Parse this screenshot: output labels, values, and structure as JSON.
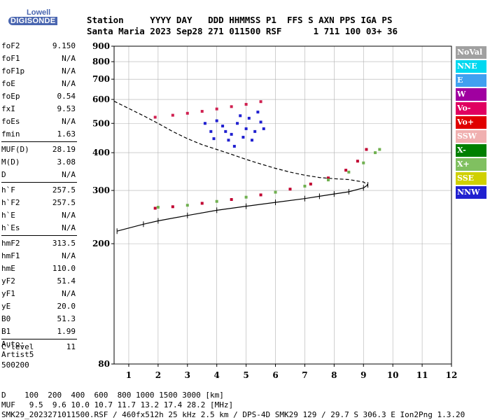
{
  "logo": {
    "line1": "Lowell",
    "line2": "DIGISONDE"
  },
  "header": {
    "line1": "Station     YYYY DAY   DDD HHMMSS P1  FFS S AXN PPS IGA PS",
    "line2": "Santa Maria 2023 Sep28 271 011500 RSF      1 711 100 03+ 36"
  },
  "params": {
    "group1": [
      {
        "name": "foF2",
        "value": "9.150"
      },
      {
        "name": "foF1",
        "value": "N/A"
      },
      {
        "name": "foF1p",
        "value": "N/A"
      },
      {
        "name": "foE",
        "value": "N/A"
      },
      {
        "name": "foEp",
        "value": "0.54"
      },
      {
        "name": "fxI",
        "value": "9.53"
      },
      {
        "name": "foEs",
        "value": "N/A"
      },
      {
        "name": "fmin",
        "value": "1.63"
      }
    ],
    "group2": [
      {
        "name": "MUF(D)",
        "value": "28.19"
      },
      {
        "name": "M(D)",
        "value": "3.08"
      },
      {
        "name": "D",
        "value": "N/A"
      }
    ],
    "group3": [
      {
        "name": "h`F",
        "value": "257.5"
      },
      {
        "name": "h`F2",
        "value": "257.5"
      },
      {
        "name": "h`E",
        "value": "N/A"
      },
      {
        "name": "h`Es",
        "value": "N/A"
      }
    ],
    "group4": [
      {
        "name": "hmF2",
        "value": "313.5"
      },
      {
        "name": "hmF1",
        "value": "N/A"
      },
      {
        "name": "hmE",
        "value": "110.0"
      },
      {
        "name": "yF2",
        "value": "51.4"
      },
      {
        "name": "yF1",
        "value": "N/A"
      },
      {
        "name": "yE",
        "value": "20.0"
      },
      {
        "name": "B0",
        "value": "51.3"
      },
      {
        "name": "B1",
        "value": "1.99"
      }
    ],
    "group5": [
      {
        "name": "C-level",
        "value": "11"
      }
    ]
  },
  "auto": {
    "line1": "Auto:",
    "line2": "Artist5",
    "line3": "500200"
  },
  "footer": {
    "line1": "D    100  200  400  600  800 1000 1500 3000 [km]",
    "line2": "MUF   9.5  9.6 10.0 10.7 11.7 13.2 17.4 28.2 [MHz]",
    "line3": "SMK29_2023271011500.RSF / 460fx512h 25 kHz 2.5 km / DPS-4D SMK29 129 / 29.7 S 306.3 E Ion2Png 1.3.20"
  },
  "legend": [
    {
      "label": "NoVal",
      "color": "#a0a0a0"
    },
    {
      "label": "NNE",
      "color": "#00d8f0"
    },
    {
      "label": "E",
      "color": "#40a0f0"
    },
    {
      "label": "W",
      "color": "#a000a0"
    },
    {
      "label": "Vo-",
      "color": "#e00060"
    },
    {
      "label": "Vo+",
      "color": "#e00000"
    },
    {
      "label": "SSW",
      "color": "#f0b0b0"
    },
    {
      "label": "X-",
      "color": "#008000"
    },
    {
      "label": "X+",
      "color": "#80c060"
    },
    {
      "label": "SSE",
      "color": "#d0d000"
    },
    {
      "label": "NNW",
      "color": "#2020d0"
    }
  ],
  "chart_data": {
    "type": "scatter",
    "xlim": [
      0.5,
      12
    ],
    "ylim": [
      80,
      900
    ],
    "y_scale": "log",
    "x_ticks": [
      1,
      2,
      3,
      4,
      5,
      6,
      7,
      8,
      9,
      10,
      11,
      12
    ],
    "y_ticks": [
      80,
      200,
      300,
      400,
      500,
      600,
      700,
      800,
      900
    ],
    "grid": true,
    "series": [
      {
        "name": "Vo+",
        "color": "#c00030",
        "points": [
          [
            1.9,
            262
          ],
          [
            2.5,
            265
          ],
          [
            3.5,
            272
          ],
          [
            4.5,
            280
          ],
          [
            5.5,
            290
          ],
          [
            6.5,
            303
          ],
          [
            7.2,
            315
          ],
          [
            7.8,
            330
          ],
          [
            8.4,
            350
          ],
          [
            8.8,
            375
          ],
          [
            9.1,
            410
          ]
        ]
      },
      {
        "name": "X+",
        "color": "#70b050",
        "points": [
          [
            2.0,
            264
          ],
          [
            3.0,
            268
          ],
          [
            4.0,
            276
          ],
          [
            5.0,
            285
          ],
          [
            6.0,
            296
          ],
          [
            7.0,
            310
          ],
          [
            7.8,
            325
          ],
          [
            8.5,
            345
          ],
          [
            9.0,
            370
          ],
          [
            9.4,
            400
          ],
          [
            9.55,
            410
          ]
        ]
      },
      {
        "name": "Vo-",
        "color": "#d02050",
        "points": [
          [
            1.9,
            524
          ],
          [
            2.5,
            532
          ],
          [
            3.0,
            540
          ],
          [
            3.5,
            548
          ],
          [
            4.0,
            558
          ],
          [
            4.5,
            568
          ],
          [
            5.0,
            578
          ],
          [
            5.5,
            590
          ]
        ]
      },
      {
        "name": "NNW",
        "color": "#2020d0",
        "points": [
          [
            3.8,
            470
          ],
          [
            4.2,
            490
          ],
          [
            4.5,
            460
          ],
          [
            4.7,
            500
          ],
          [
            4.9,
            450
          ],
          [
            5.0,
            480
          ],
          [
            5.1,
            520
          ],
          [
            5.3,
            470
          ],
          [
            5.5,
            505
          ],
          [
            4.4,
            440
          ],
          [
            4.0,
            510
          ],
          [
            4.8,
            530
          ],
          [
            5.2,
            440
          ],
          [
            3.6,
            500
          ],
          [
            5.4,
            545
          ],
          [
            4.6,
            420
          ],
          [
            4.3,
            470
          ],
          [
            3.9,
            445
          ],
          [
            5.6,
            480
          ]
        ]
      }
    ],
    "virtual_height_profile": [
      [
        0.6,
        220
      ],
      [
        1.5,
        232
      ],
      [
        2.0,
        238
      ],
      [
        3.0,
        248
      ],
      [
        4.0,
        258
      ],
      [
        5.0,
        266
      ],
      [
        6.0,
        274
      ],
      [
        7.0,
        282
      ],
      [
        7.5,
        287
      ],
      [
        8.0,
        292
      ],
      [
        8.5,
        297
      ],
      [
        9.0,
        306
      ],
      [
        9.15,
        313
      ]
    ],
    "real_height_profile": [
      [
        0.5,
        592
      ],
      [
        1.0,
        560
      ],
      [
        1.5,
        530
      ],
      [
        2.0,
        500
      ],
      [
        2.5,
        470
      ],
      [
        3.0,
        445
      ],
      [
        3.5,
        425
      ],
      [
        4.0,
        410
      ],
      [
        4.5,
        395
      ],
      [
        5.0,
        380
      ],
      [
        5.5,
        367
      ],
      [
        6.0,
        355
      ],
      [
        6.5,
        345
      ],
      [
        7.0,
        337
      ],
      [
        7.5,
        331
      ],
      [
        8.0,
        328
      ],
      [
        8.5,
        326
      ],
      [
        9.0,
        320
      ],
      [
        9.15,
        313
      ]
    ]
  }
}
